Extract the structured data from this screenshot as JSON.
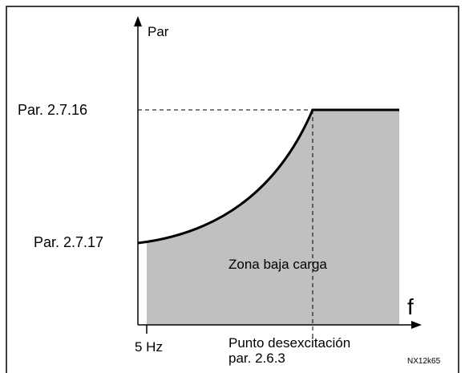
{
  "diagram": {
    "y_axis_label": "Par",
    "x_axis_label": "f",
    "upper_level_label": "Par. 2.7.16",
    "lower_level_label": "Par. 2.7.17",
    "area_label": "Zona baja carga",
    "start_label": "5 Hz",
    "field_weakening_label": [
      "Punto desexcitación",
      "par. 2.6.3"
    ],
    "figure_code": "NX12k65"
  }
}
